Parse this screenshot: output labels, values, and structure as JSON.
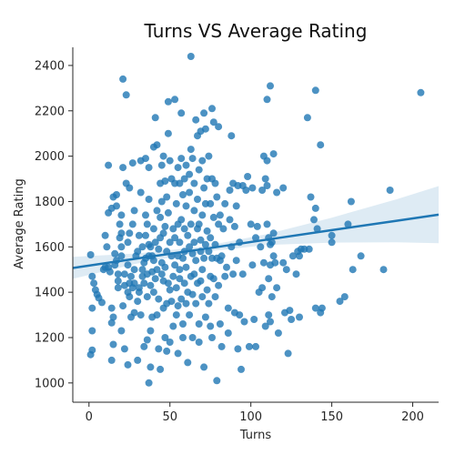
{
  "chart_data": {
    "type": "scatter",
    "title": "Turns VS Average Rating",
    "xlabel": "Turns",
    "ylabel": "Average Rating",
    "xlim": [
      -10,
      216
    ],
    "ylim": [
      915,
      2480
    ],
    "xticks": [
      0,
      50,
      100,
      150,
      200
    ],
    "yticks": [
      1000,
      1200,
      1400,
      1600,
      1800,
      2000,
      2200,
      2400
    ],
    "grid": false,
    "legend": "none",
    "colors": {
      "points": "#1f77b4",
      "line": "#1f77b4",
      "band": "#1f77b4"
    },
    "regression": {
      "x": [
        -10,
        30,
        70,
        110,
        150,
        190,
        216
      ],
      "y": [
        1507,
        1549,
        1590,
        1632,
        1674,
        1715,
        1742
      ],
      "ci_upper": [
        1556,
        1571,
        1601,
        1656,
        1729,
        1810,
        1868
      ],
      "ci_lower": [
        1459,
        1527,
        1578,
        1608,
        1619,
        1620,
        1616
      ]
    },
    "points": [
      [
        1,
        1565
      ],
      [
        2,
        1470
      ],
      [
        2,
        1230
      ],
      [
        2,
        1145
      ],
      [
        1,
        1125
      ],
      [
        2,
        1330
      ],
      [
        3,
        1440
      ],
      [
        4,
        1410
      ],
      [
        5,
        1390
      ],
      [
        6,
        1375
      ],
      [
        8,
        1355
      ],
      [
        9,
        1500
      ],
      [
        10,
        1510
      ],
      [
        10,
        1650
      ],
      [
        11,
        1600
      ],
      [
        12,
        1750
      ],
      [
        12,
        1960
      ],
      [
        12,
        1510
      ],
      [
        13,
        1490
      ],
      [
        14,
        1770
      ],
      [
        14,
        1330
      ],
      [
        14,
        1265
      ],
      [
        14,
        1100
      ],
      [
        15,
        1170
      ],
      [
        15,
        1290
      ],
      [
        15,
        1820
      ],
      [
        16,
        1520
      ],
      [
        16,
        1570
      ],
      [
        17,
        1540
      ],
      [
        17,
        1830
      ],
      [
        17,
        1780
      ],
      [
        18,
        1420
      ],
      [
        18,
        1450
      ],
      [
        18,
        1480
      ],
      [
        19,
        1640
      ],
      [
        19,
        1700
      ],
      [
        20,
        1660
      ],
      [
        20,
        1740
      ],
      [
        20,
        1600
      ],
      [
        20,
        1230
      ],
      [
        20,
        1560
      ],
      [
        21,
        1340
      ],
      [
        21,
        1950
      ],
      [
        21,
        2340
      ],
      [
        22,
        1150
      ],
      [
        22,
        1480
      ],
      [
        22,
        1430
      ],
      [
        23,
        2270
      ],
      [
        23,
        1880
      ],
      [
        24,
        1400
      ],
      [
        24,
        1520
      ],
      [
        24,
        1620
      ],
      [
        24,
        1080
      ],
      [
        25,
        1380
      ],
      [
        25,
        1440
      ],
      [
        25,
        1660
      ],
      [
        25,
        1860
      ],
      [
        26,
        1290
      ],
      [
        26,
        1470
      ],
      [
        27,
        1420
      ],
      [
        27,
        1700
      ],
      [
        27,
        1970
      ],
      [
        28,
        1310
      ],
      [
        28,
        1440
      ],
      [
        28,
        1500
      ],
      [
        28,
        1760
      ],
      [
        29,
        1560
      ],
      [
        30,
        1580
      ],
      [
        30,
        1360
      ],
      [
        30,
        1100
      ],
      [
        31,
        1420
      ],
      [
        31,
        1650
      ],
      [
        31,
        1400
      ],
      [
        32,
        1980
      ],
      [
        32,
        1840
      ],
      [
        32,
        1300
      ],
      [
        33,
        1470
      ],
      [
        33,
        1600
      ],
      [
        33,
        1500
      ],
      [
        34,
        1530
      ],
      [
        34,
        1440
      ],
      [
        34,
        1160
      ],
      [
        35,
        1990
      ],
      [
        35,
        1550
      ],
      [
        35,
        1740
      ],
      [
        35,
        1650
      ],
      [
        36,
        1700
      ],
      [
        36,
        1480
      ],
      [
        36,
        1190
      ],
      [
        36,
        1380
      ],
      [
        37,
        1810
      ],
      [
        37,
        1560
      ],
      [
        37,
        1950
      ],
      [
        37,
        1610
      ],
      [
        37,
        1000
      ],
      [
        38,
        1600
      ],
      [
        38,
        1430
      ],
      [
        38,
        1230
      ],
      [
        38,
        1070
      ],
      [
        39,
        1290
      ],
      [
        39,
        1490
      ],
      [
        39,
        1560
      ],
      [
        40,
        2040
      ],
      [
        40,
        1540
      ],
      [
        40,
        1400
      ],
      [
        40,
        1680
      ],
      [
        41,
        1620
      ],
      [
        41,
        2170
      ],
      [
        41,
        1460
      ],
      [
        42,
        2050
      ],
      [
        42,
        1760
      ],
      [
        42,
        1300
      ],
      [
        42,
        1500
      ],
      [
        43,
        1590
      ],
      [
        43,
        1370
      ],
      [
        43,
        1150
      ],
      [
        44,
        1730
      ],
      [
        44,
        1880
      ],
      [
        44,
        1640
      ],
      [
        44,
        1060
      ],
      [
        45,
        1960
      ],
      [
        45,
        1480
      ],
      [
        45,
        1800
      ],
      [
        45,
        1530
      ],
      [
        46,
        2000
      ],
      [
        46,
        1330
      ],
      [
        46,
        1660
      ],
      [
        46,
        1450
      ],
      [
        47,
        1690
      ],
      [
        47,
        1510
      ],
      [
        47,
        1200
      ],
      [
        47,
        1890
      ],
      [
        48,
        1350
      ],
      [
        48,
        1580
      ],
      [
        48,
        1820
      ],
      [
        48,
        1140
      ],
      [
        49,
        2240
      ],
      [
        49,
        2100
      ],
      [
        49,
        1750
      ],
      [
        49,
        1440
      ],
      [
        50,
        1620
      ],
      [
        50,
        1410
      ],
      [
        50,
        1980
      ],
      [
        50,
        1180
      ],
      [
        51,
        1900
      ],
      [
        51,
        1560
      ],
      [
        51,
        1360
      ],
      [
        52,
        1680
      ],
      [
        52,
        1470
      ],
      [
        52,
        1250
      ],
      [
        53,
        2250
      ],
      [
        53,
        1880
      ],
      [
        53,
        1640
      ],
      [
        53,
        1520
      ],
      [
        54,
        1790
      ],
      [
        54,
        1420
      ],
      [
        54,
        1300
      ],
      [
        55,
        1950
      ],
      [
        55,
        1560
      ],
      [
        55,
        1700
      ],
      [
        55,
        1340
      ],
      [
        55,
        1130
      ],
      [
        56,
        1880
      ],
      [
        56,
        1500
      ],
      [
        56,
        1620
      ],
      [
        56,
        1460
      ],
      [
        57,
        2190
      ],
      [
        57,
        1990
      ],
      [
        57,
        1720
      ],
      [
        57,
        1370
      ],
      [
        58,
        1830
      ],
      [
        58,
        1550
      ],
      [
        58,
        1260
      ],
      [
        58,
        1200
      ],
      [
        59,
        1680
      ],
      [
        59,
        1440
      ],
      [
        59,
        1900
      ],
      [
        59,
        1580
      ],
      [
        60,
        1960
      ],
      [
        60,
        1350
      ],
      [
        60,
        1780
      ],
      [
        60,
        1510
      ],
      [
        61,
        1650
      ],
      [
        61,
        1400
      ],
      [
        61,
        1090
      ],
      [
        62,
        1920
      ],
      [
        62,
        1600
      ],
      [
        62,
        1300
      ],
      [
        62,
        1840
      ],
      [
        63,
        2440
      ],
      [
        63,
        2030
      ],
      [
        63,
        1700
      ],
      [
        63,
        1470
      ],
      [
        64,
        1990
      ],
      [
        64,
        1570
      ],
      [
        64,
        1390
      ],
      [
        64,
        1200
      ],
      [
        65,
        1880
      ],
      [
        65,
        1760
      ],
      [
        65,
        1620
      ],
      [
        65,
        1480
      ],
      [
        66,
        2160
      ],
      [
        66,
        1540
      ],
      [
        66,
        1350
      ],
      [
        67,
        2090
      ],
      [
        67,
        1810
      ],
      [
        67,
        1680
      ],
      [
        67,
        1440
      ],
      [
        68,
        1940
      ],
      [
        68,
        1700
      ],
      [
        68,
        1260
      ],
      [
        68,
        1180
      ],
      [
        69,
        2110
      ],
      [
        69,
        1580
      ],
      [
        69,
        1450
      ],
      [
        69,
        1630
      ],
      [
        70,
        1980
      ],
      [
        70,
        1740
      ],
      [
        70,
        1500
      ],
      [
        70,
        1380
      ],
      [
        71,
        2190
      ],
      [
        71,
        1860
      ],
      [
        71,
        1550
      ],
      [
        71,
        1070
      ],
      [
        72,
        2120
      ],
      [
        72,
        1790
      ],
      [
        72,
        1610
      ],
      [
        72,
        1290
      ],
      [
        73,
        1900
      ],
      [
        73,
        1670
      ],
      [
        73,
        1410
      ],
      [
        74,
        2000
      ],
      [
        74,
        1580
      ],
      [
        74,
        1350
      ],
      [
        75,
        1790
      ],
      [
        75,
        1640
      ],
      [
        75,
        1470
      ],
      [
        75,
        1250
      ],
      [
        76,
        2210
      ],
      [
        76,
        1900
      ],
      [
        76,
        1550
      ],
      [
        76,
        1200
      ],
      [
        77,
        2150
      ],
      [
        77,
        1730
      ],
      [
        77,
        1460
      ],
      [
        78,
        1880
      ],
      [
        78,
        1610
      ],
      [
        78,
        1380
      ],
      [
        79,
        1820
      ],
      [
        79,
        1550
      ],
      [
        79,
        1010
      ],
      [
        80,
        2130
      ],
      [
        80,
        1700
      ],
      [
        80,
        1430
      ],
      [
        81,
        1740
      ],
      [
        81,
        1540
      ],
      [
        81,
        1260
      ],
      [
        82,
        1560
      ],
      [
        82,
        1160
      ],
      [
        83,
        1680
      ],
      [
        84,
        1470
      ],
      [
        84,
        1790
      ],
      [
        85,
        1510
      ],
      [
        86,
        1330
      ],
      [
        86,
        1220
      ],
      [
        87,
        1720
      ],
      [
        87,
        1850
      ],
      [
        88,
        1600
      ],
      [
        88,
        2090
      ],
      [
        89,
        1880
      ],
      [
        89,
        1480
      ],
      [
        90,
        1310
      ],
      [
        90,
        1690
      ],
      [
        91,
        1780
      ],
      [
        91,
        1540
      ],
      [
        92,
        1870
      ],
      [
        92,
        1150
      ],
      [
        93,
        1620
      ],
      [
        93,
        1300
      ],
      [
        94,
        1060
      ],
      [
        95,
        1870
      ],
      [
        95,
        1480
      ],
      [
        96,
        1270
      ],
      [
        97,
        1850
      ],
      [
        98,
        1910
      ],
      [
        99,
        1160
      ],
      [
        100,
        1700
      ],
      [
        101,
        1860
      ],
      [
        101,
        1520
      ],
      [
        102,
        1280
      ],
      [
        103,
        1640
      ],
      [
        103,
        1160
      ],
      [
        104,
        1690
      ],
      [
        105,
        1400
      ],
      [
        106,
        1600
      ],
      [
        107,
        1850
      ],
      [
        107,
        1420
      ],
      [
        108,
        2000
      ],
      [
        108,
        1530
      ],
      [
        109,
        1900
      ],
      [
        109,
        1250
      ],
      [
        110,
        2250
      ],
      [
        110,
        1980
      ],
      [
        110,
        1870
      ],
      [
        110,
        1700
      ],
      [
        111,
        1640
      ],
      [
        111,
        1460
      ],
      [
        111,
        1300
      ],
      [
        112,
        2310
      ],
      [
        112,
        1610
      ],
      [
        112,
        1520
      ],
      [
        112,
        1270
      ],
      [
        113,
        1620
      ],
      [
        113,
        1380
      ],
      [
        114,
        2010
      ],
      [
        114,
        1660
      ],
      [
        114,
        1560
      ],
      [
        115,
        1530
      ],
      [
        116,
        1840
      ],
      [
        116,
        1420
      ],
      [
        117,
        1220
      ],
      [
        120,
        1860
      ],
      [
        120,
        1530
      ],
      [
        121,
        1310
      ],
      [
        122,
        1500
      ],
      [
        123,
        1130
      ],
      [
        124,
        1320
      ],
      [
        125,
        1280
      ],
      [
        126,
        1560
      ],
      [
        128,
        1480
      ],
      [
        129,
        1580
      ],
      [
        130,
        1290
      ],
      [
        130,
        1560
      ],
      [
        131,
        1590
      ],
      [
        133,
        1590
      ],
      [
        135,
        2170
      ],
      [
        136,
        1590
      ],
      [
        137,
        1820
      ],
      [
        139,
        1720
      ],
      [
        140,
        2290
      ],
      [
        140,
        1770
      ],
      [
        140,
        1330
      ],
      [
        141,
        1680
      ],
      [
        143,
        2050
      ],
      [
        143,
        1310
      ],
      [
        144,
        1330
      ],
      [
        150,
        1650
      ],
      [
        150,
        1620
      ],
      [
        155,
        1360
      ],
      [
        158,
        1380
      ],
      [
        160,
        1700
      ],
      [
        162,
        1800
      ],
      [
        163,
        1500
      ],
      [
        168,
        1560
      ],
      [
        182,
        1500
      ],
      [
        186,
        1850
      ],
      [
        205,
        2280
      ]
    ]
  }
}
